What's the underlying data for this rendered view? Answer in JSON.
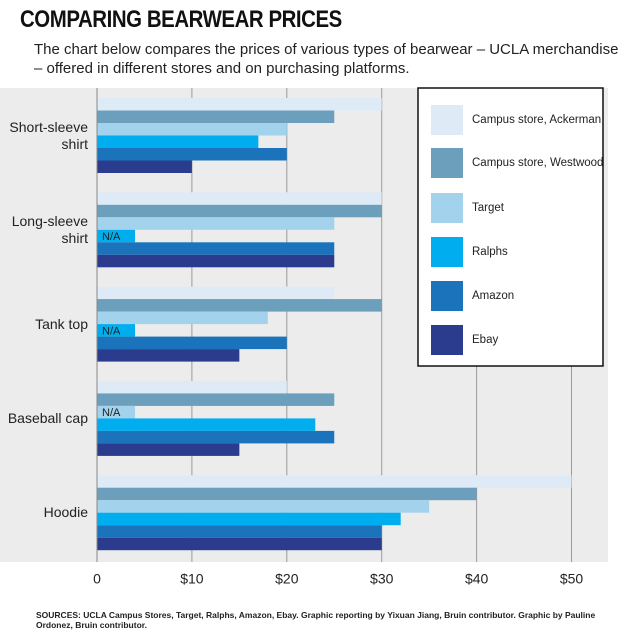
{
  "chart_data": {
    "type": "barh",
    "title": "COMPARING BEARWEAR PRICES",
    "subtitle": "The chart below compares the prices of various types of bearwear – UCLA merchandise – offered in different stores and on purchasing platforms.",
    "source": "SOURCES: UCLA Campus Stores, Target, Ralphs, Amazon, Ebay. Graphic reporting by Yixuan Jiang, Bruin contributor. Graphic by Pauline Ordonez, Bruin contributor.",
    "categories": [
      "Short-sleeve\nshirt",
      "Long-sleeve\nshirt",
      "Tank top",
      "Baseball cap",
      "Hoodie"
    ],
    "series": [
      {
        "name": "Campus store, Ackerman",
        "color": "#deebf6",
        "values": [
          30,
          30,
          25,
          20,
          50
        ]
      },
      {
        "name": "Campus store, Westwood",
        "color": "#6b9fbc",
        "values": [
          25,
          30,
          30,
          25,
          40
        ]
      },
      {
        "name": "Target",
        "color": "#a2d2ec",
        "values": [
          20,
          25,
          18,
          null,
          35
        ],
        "value_labels": [
          null,
          null,
          null,
          "N/A",
          null
        ]
      },
      {
        "name": "Ralphs",
        "color": "#00aeef",
        "values": [
          17,
          null,
          null,
          23,
          32
        ],
        "value_labels": [
          null,
          "N/A",
          "N/A",
          null,
          null
        ]
      },
      {
        "name": "Amazon",
        "color": "#1b74bb",
        "values": [
          20,
          25,
          20,
          25,
          30
        ]
      },
      {
        "name": "Ebay",
        "color": "#2b3b8d",
        "values": [
          10,
          25,
          15,
          15,
          30
        ]
      }
    ],
    "xlim": [
      0,
      53
    ],
    "xticks": [
      0,
      {
        "value": 10,
        "label": "$10"
      },
      {
        "value": 20,
        "label": "$20"
      },
      {
        "value": 30,
        "label": "$30"
      },
      {
        "value": 40,
        "label": "$40"
      },
      {
        "value": 50,
        "label": "$50"
      }
    ],
    "grid": true,
    "legend": "upper right"
  }
}
